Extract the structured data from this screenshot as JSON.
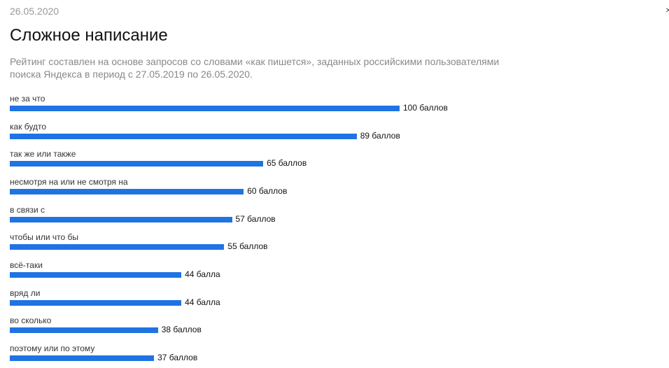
{
  "header": {
    "date": "26.05.2020",
    "close_mark": "×"
  },
  "chart_data": {
    "type": "bar",
    "orientation": "horizontal",
    "title": "Сложное написание",
    "subtitle": "Рейтинг составлен на основе запросов со словами «как пишется», заданных российскими пользователями поиска Яндекса в период с 27.05.2019 по 26.05.2020.",
    "categories": [
      "не за что",
      "как будто",
      "так же или также",
      "несмотря на или не смотря на",
      "в связи с",
      "чтобы или что бы",
      "всё-таки",
      "вряд ли",
      "во сколько",
      "поэтому или по этому"
    ],
    "values": [
      100,
      89,
      65,
      60,
      57,
      55,
      44,
      44,
      38,
      37
    ],
    "value_labels": [
      "100 баллов",
      "89 баллов",
      "65 баллов",
      "60 баллов",
      "57 баллов",
      "55 баллов",
      "44 балла",
      "44 балла",
      "38 баллов",
      "37 баллов"
    ],
    "xlim": [
      0,
      100
    ],
    "bar_color": "#1f73e3",
    "grid": false,
    "legend": "none"
  }
}
